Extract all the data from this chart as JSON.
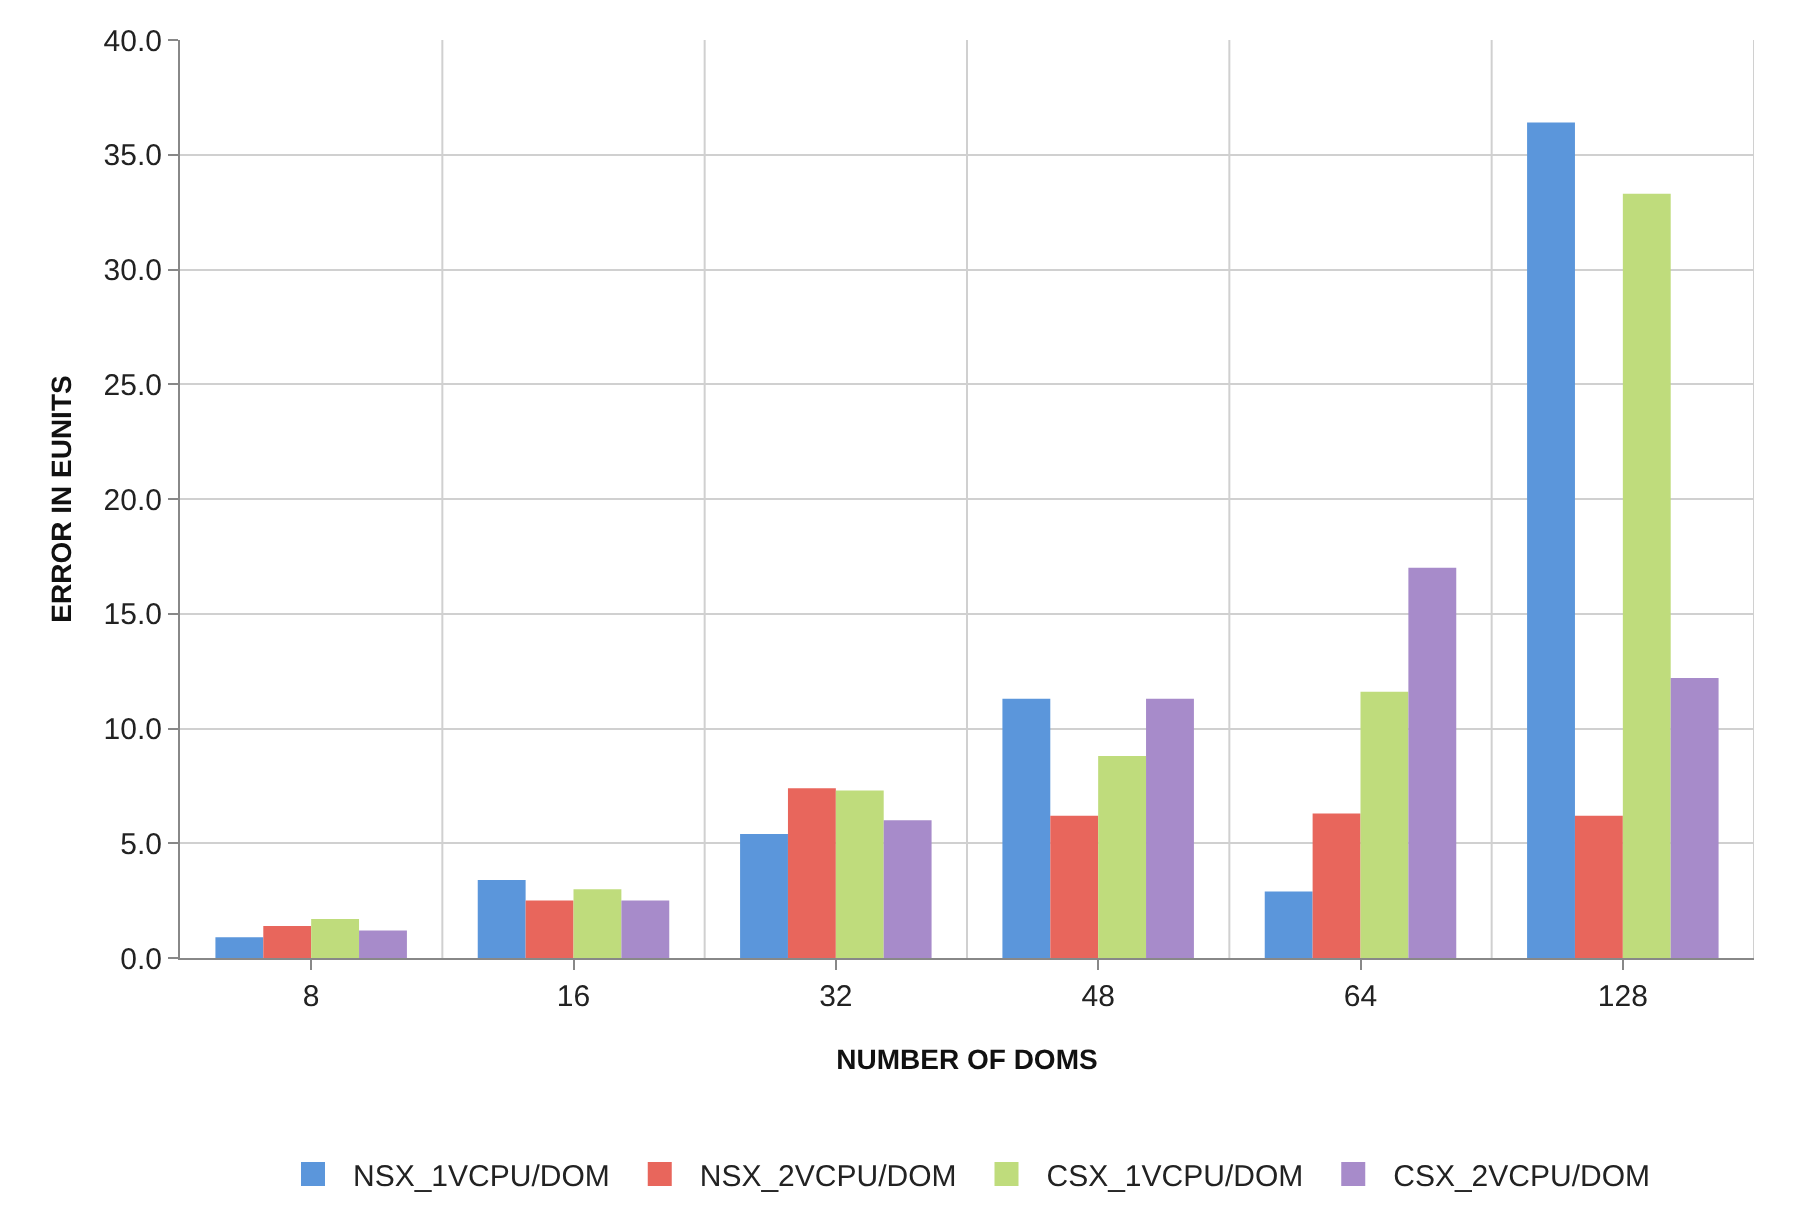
{
  "chart_data": {
    "type": "bar",
    "xlabel": "NUMBER OF DOMS",
    "ylabel": "ERROR IN EUNITS",
    "categories": [
      "8",
      "16",
      "32",
      "48",
      "64",
      "128"
    ],
    "series": [
      {
        "name": "NSX_1VCPU/DOM",
        "color": "#5b96db",
        "values": [
          0.9,
          3.4,
          5.4,
          11.3,
          2.9,
          36.4
        ]
      },
      {
        "name": "NSX_2VCPU/DOM",
        "color": "#e8665c",
        "values": [
          1.4,
          2.5,
          7.4,
          6.2,
          6.3,
          6.2
        ]
      },
      {
        "name": "CSX_1VCPU/DOM",
        "color": "#bfdc7c",
        "values": [
          1.7,
          3.0,
          7.3,
          8.8,
          11.6,
          33.3
        ]
      },
      {
        "name": "CSX_2VCPU/DOM",
        "color": "#a78bca",
        "values": [
          1.2,
          2.5,
          6.0,
          11.3,
          17.0,
          12.2
        ]
      }
    ],
    "ylim": [
      0,
      40
    ],
    "yticks": [
      {
        "value": 0,
        "label": "0.0"
      },
      {
        "value": 5,
        "label": "5.0"
      },
      {
        "value": 10,
        "label": "10.0"
      },
      {
        "value": 15,
        "label": "15.0"
      },
      {
        "value": 20,
        "label": "20.0"
      },
      {
        "value": 25,
        "label": "25.0"
      },
      {
        "value": 30,
        "label": "30.0"
      },
      {
        "value": 35,
        "label": "35.0"
      },
      {
        "value": 40,
        "label": "40.0"
      }
    ],
    "grid": true,
    "legend": "bottom"
  }
}
